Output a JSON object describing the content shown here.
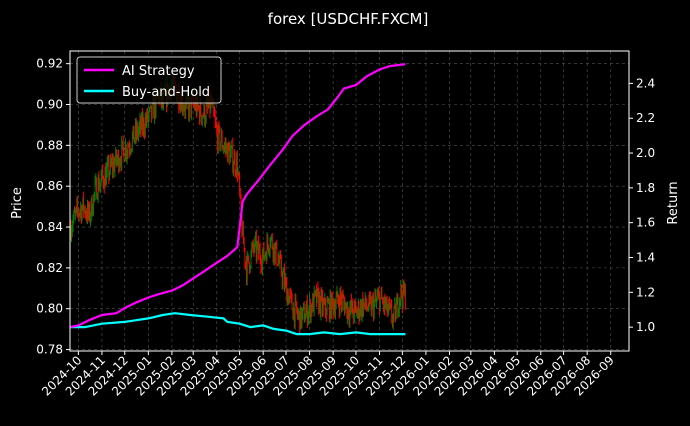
{
  "chart_data": {
    "type": "line",
    "title": "forex [USDCHF.FXCM]",
    "ylabel_left": "Price",
    "ylabel_right": "Return",
    "x_ticks": [
      "2024-10",
      "2024-11",
      "2024-12",
      "2025-01",
      "2025-02",
      "2025-03",
      "2025-04",
      "2025-05",
      "2025-06",
      "2025-07",
      "2025-08",
      "2025-09",
      "2025-10",
      "2025-11",
      "2025-12",
      "2026-01",
      "2026-02",
      "2026-03",
      "2026-04",
      "2026-05",
      "2026-06",
      "2026-07",
      "2026-08",
      "2026-09"
    ],
    "x_range": [
      "2024-09-20",
      "2026-09-25"
    ],
    "y_left_ticks": [
      "0.78",
      "0.80",
      "0.82",
      "0.84",
      "0.86",
      "0.88",
      "0.90",
      "0.92"
    ],
    "y_left_range": [
      0.7793,
      0.9262
    ],
    "y_right_ticks": [
      "1.0",
      "1.2",
      "1.4",
      "1.6",
      "1.8",
      "2.0",
      "2.2",
      "2.4"
    ],
    "y_right_range": [
      0.863,
      2.586
    ],
    "grid": true,
    "legend_position": "top-left",
    "colors": {
      "ai": "#ff00ff",
      "bh": "#00ffff",
      "up": "#008000",
      "down": "#ff0000",
      "grid": "#555555"
    },
    "series": [
      {
        "name": "AI Strategy",
        "axis": "right",
        "points": [
          [
            "2024-09-20",
            1.0
          ],
          [
            "2024-10-01",
            1.01
          ],
          [
            "2024-10-15",
            1.04
          ],
          [
            "2024-11-01",
            1.07
          ],
          [
            "2024-11-20",
            1.08
          ],
          [
            "2024-12-01",
            1.11
          ],
          [
            "2024-12-15",
            1.14
          ],
          [
            "2025-01-01",
            1.17
          ],
          [
            "2025-01-15",
            1.19
          ],
          [
            "2025-02-01",
            1.21
          ],
          [
            "2025-02-15",
            1.24
          ],
          [
            "2025-03-01",
            1.28
          ],
          [
            "2025-03-15",
            1.32
          ],
          [
            "2025-04-01",
            1.37
          ],
          [
            "2025-04-15",
            1.41
          ],
          [
            "2025-04-28",
            1.46
          ],
          [
            "2025-05-01",
            1.57
          ],
          [
            "2025-05-05",
            1.72
          ],
          [
            "2025-05-10",
            1.76
          ],
          [
            "2025-05-25",
            1.84
          ],
          [
            "2025-06-10",
            1.93
          ],
          [
            "2025-06-25",
            2.01
          ],
          [
            "2025-07-10",
            2.1
          ],
          [
            "2025-07-25",
            2.16
          ],
          [
            "2025-08-10",
            2.21
          ],
          [
            "2025-08-25",
            2.25
          ],
          [
            "2025-09-05",
            2.31
          ],
          [
            "2025-09-15",
            2.37
          ],
          [
            "2025-10-01",
            2.39
          ],
          [
            "2025-10-15",
            2.44
          ],
          [
            "2025-11-01",
            2.48
          ],
          [
            "2025-11-15",
            2.5
          ],
          [
            "2025-12-05",
            2.51
          ]
        ]
      },
      {
        "name": "Buy-and-Hold",
        "axis": "right",
        "points": [
          [
            "2024-09-20",
            1.0
          ],
          [
            "2024-10-10",
            1.0
          ],
          [
            "2024-11-01",
            1.02
          ],
          [
            "2024-12-01",
            1.03
          ],
          [
            "2025-01-01",
            1.05
          ],
          [
            "2025-01-20",
            1.07
          ],
          [
            "2025-02-05",
            1.08
          ],
          [
            "2025-02-25",
            1.07
          ],
          [
            "2025-03-20",
            1.06
          ],
          [
            "2025-04-10",
            1.05
          ],
          [
            "2025-04-15",
            1.03
          ],
          [
            "2025-05-01",
            1.02
          ],
          [
            "2025-05-15",
            1.0
          ],
          [
            "2025-06-01",
            1.01
          ],
          [
            "2025-06-15",
            0.99
          ],
          [
            "2025-07-01",
            0.98
          ],
          [
            "2025-07-15",
            0.96
          ],
          [
            "2025-08-01",
            0.96
          ],
          [
            "2025-08-20",
            0.97
          ],
          [
            "2025-09-10",
            0.96
          ],
          [
            "2025-10-01",
            0.97
          ],
          [
            "2025-10-20",
            0.96
          ],
          [
            "2025-11-10",
            0.96
          ],
          [
            "2025-12-05",
            0.96
          ]
        ]
      },
      {
        "name": "",
        "axis": "left",
        "style": "candles",
        "points": [
          [
            "2024-09-20",
            0.84
          ],
          [
            "2024-10-01",
            0.848
          ],
          [
            "2024-10-08",
            0.85
          ],
          [
            "2024-10-15",
            0.845
          ],
          [
            "2024-10-25",
            0.86
          ],
          [
            "2024-11-05",
            0.865
          ],
          [
            "2024-11-15",
            0.87
          ],
          [
            "2024-11-25",
            0.875
          ],
          [
            "2024-12-05",
            0.88
          ],
          [
            "2024-12-15",
            0.885
          ],
          [
            "2024-12-25",
            0.89
          ],
          [
            "2025-01-05",
            0.895
          ],
          [
            "2025-01-15",
            0.905
          ],
          [
            "2025-01-20",
            0.9
          ],
          [
            "2025-01-30",
            0.91
          ],
          [
            "2025-02-10",
            0.905
          ],
          [
            "2025-02-20",
            0.898
          ],
          [
            "2025-03-01",
            0.9
          ],
          [
            "2025-03-15",
            0.895
          ],
          [
            "2025-03-25",
            0.9
          ],
          [
            "2025-04-01",
            0.885
          ],
          [
            "2025-04-10",
            0.88
          ],
          [
            "2025-04-20",
            0.875
          ],
          [
            "2025-04-28",
            0.87
          ],
          [
            "2025-05-05",
            0.835
          ],
          [
            "2025-05-10",
            0.82
          ],
          [
            "2025-05-20",
            0.83
          ],
          [
            "2025-06-01",
            0.825
          ],
          [
            "2025-06-10",
            0.835
          ],
          [
            "2025-06-20",
            0.825
          ],
          [
            "2025-07-01",
            0.81
          ],
          [
            "2025-07-10",
            0.8
          ],
          [
            "2025-07-20",
            0.795
          ],
          [
            "2025-08-01",
            0.8
          ],
          [
            "2025-08-10",
            0.805
          ],
          [
            "2025-08-20",
            0.8
          ],
          [
            "2025-09-01",
            0.802
          ],
          [
            "2025-09-10",
            0.805
          ],
          [
            "2025-09-20",
            0.8
          ],
          [
            "2025-10-01",
            0.798
          ],
          [
            "2025-10-10",
            0.802
          ],
          [
            "2025-10-20",
            0.8
          ],
          [
            "2025-11-01",
            0.805
          ],
          [
            "2025-11-10",
            0.8
          ],
          [
            "2025-11-20",
            0.795
          ],
          [
            "2025-11-28",
            0.808
          ],
          [
            "2025-12-05",
            0.806
          ]
        ]
      }
    ]
  }
}
